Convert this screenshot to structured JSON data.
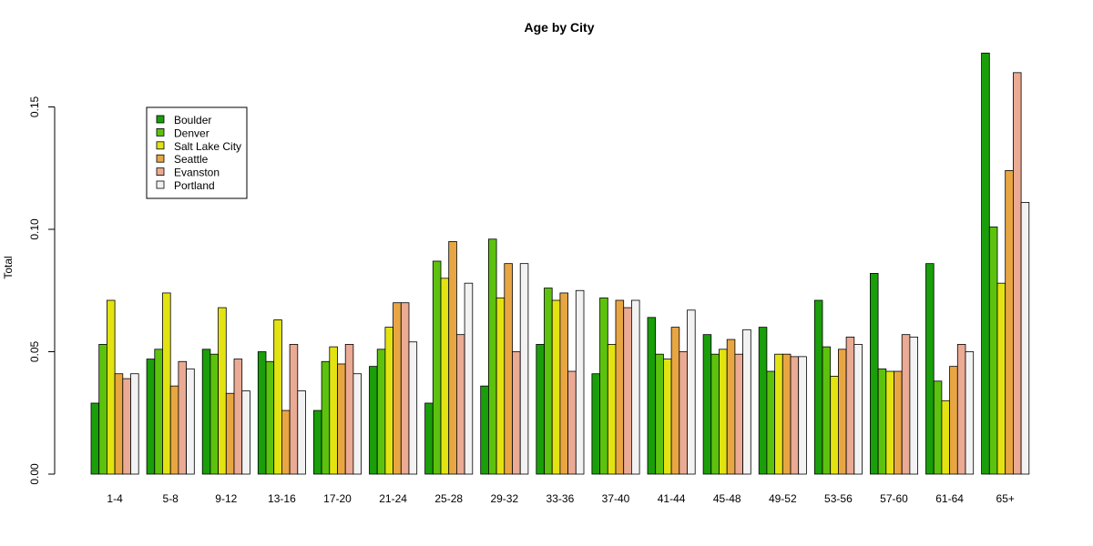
{
  "chart_data": {
    "type": "bar",
    "title": "Age by City",
    "xlabel": "",
    "ylabel": "Total",
    "ylim": [
      0,
      0.175
    ],
    "yticks": [
      "0.00",
      "0.05",
      "0.10",
      "0.15"
    ],
    "ytick_values": [
      0,
      0.05,
      0.1,
      0.15
    ],
    "grid": false,
    "legend_position": "top-left",
    "categories": [
      "1-4",
      "5-8",
      "9-12",
      "13-16",
      "17-20",
      "21-24",
      "25-28",
      "29-32",
      "33-36",
      "37-40",
      "41-44",
      "45-48",
      "49-52",
      "53-56",
      "57-60",
      "61-64",
      "65+"
    ],
    "series": [
      {
        "name": "Boulder",
        "color": "#1a9e0a",
        "values": [
          0.029,
          0.047,
          0.051,
          0.05,
          0.026,
          0.044,
          0.029,
          0.036,
          0.053,
          0.041,
          0.064,
          0.057,
          0.06,
          0.071,
          0.082,
          0.086,
          0.172
        ]
      },
      {
        "name": "Denver",
        "color": "#5cc20e",
        "values": [
          0.053,
          0.051,
          0.049,
          0.046,
          0.046,
          0.051,
          0.087,
          0.096,
          0.076,
          0.072,
          0.049,
          0.049,
          0.042,
          0.052,
          0.043,
          0.038,
          0.101
        ]
      },
      {
        "name": "Salt Lake City",
        "color": "#e3e312",
        "values": [
          0.071,
          0.074,
          0.068,
          0.063,
          0.052,
          0.06,
          0.08,
          0.072,
          0.071,
          0.053,
          0.047,
          0.051,
          0.049,
          0.04,
          0.042,
          0.03,
          0.078
        ]
      },
      {
        "name": "Seattle",
        "color": "#e8a643",
        "values": [
          0.041,
          0.036,
          0.033,
          0.026,
          0.045,
          0.07,
          0.095,
          0.086,
          0.074,
          0.071,
          0.06,
          0.055,
          0.049,
          0.051,
          0.042,
          0.044,
          0.124
        ]
      },
      {
        "name": "Evanston",
        "color": "#eaaa93",
        "values": [
          0.039,
          0.046,
          0.047,
          0.053,
          0.053,
          0.07,
          0.057,
          0.05,
          0.042,
          0.068,
          0.05,
          0.049,
          0.048,
          0.056,
          0.057,
          0.053,
          0.164
        ]
      },
      {
        "name": "Portland",
        "color": "#f2f2f2",
        "values": [
          0.041,
          0.043,
          0.034,
          0.034,
          0.041,
          0.054,
          0.078,
          0.086,
          0.075,
          0.071,
          0.067,
          0.059,
          0.048,
          0.053,
          0.056,
          0.05,
          0.111
        ]
      }
    ]
  }
}
